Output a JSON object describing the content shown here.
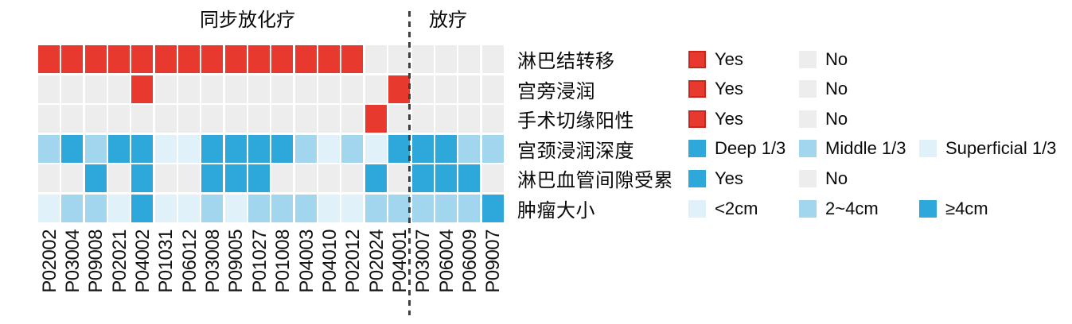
{
  "colors": {
    "red": "#E8392E",
    "red_border": "#C9271D",
    "gray": "#EDEDED",
    "blue_dark": "#2EA7DB",
    "blue_mid": "#A2D6EE",
    "blue_light": "#E1F1F9",
    "divider": "#3F3F3F"
  },
  "chart_data": {
    "type": "heatmap",
    "groups": [
      {
        "label": "同步放化疗",
        "patient_span": [
          1,
          16
        ]
      },
      {
        "label": "放疗",
        "patient_span": [
          17,
          20
        ]
      }
    ],
    "patients": [
      "P02002",
      "P03004",
      "P09008",
      "P02021",
      "P04002",
      "P01031",
      "P06012",
      "P03008",
      "P09005",
      "P01027",
      "P01008",
      "P04003",
      "P04010",
      "P02012",
      "P02024",
      "P04001",
      "P03007",
      "P06004",
      "P06009",
      "P09007"
    ],
    "rows": [
      {
        "label": "淋巴结转移",
        "palette": {
          "Yes": "red",
          "No": "gray"
        },
        "legend": [
          {
            "label": "Yes",
            "color": "red",
            "bordered": true
          },
          {
            "label": "No",
            "color": "gray"
          }
        ],
        "values": [
          "Yes",
          "Yes",
          "Yes",
          "Yes",
          "Yes",
          "Yes",
          "Yes",
          "Yes",
          "Yes",
          "Yes",
          "Yes",
          "Yes",
          "Yes",
          "Yes",
          "No",
          "No",
          "No",
          "No",
          "No",
          "No"
        ]
      },
      {
        "label": "宫旁浸润",
        "palette": {
          "Yes": "red",
          "No": "gray"
        },
        "legend": [
          {
            "label": "Yes",
            "color": "red",
            "bordered": true
          },
          {
            "label": "No",
            "color": "gray"
          }
        ],
        "values": [
          "No",
          "No",
          "No",
          "No",
          "Yes",
          "No",
          "No",
          "No",
          "No",
          "No",
          "No",
          "No",
          "No",
          "No",
          "No",
          "Yes",
          "No",
          "No",
          "No",
          "No"
        ]
      },
      {
        "label": "手术切缘阳性",
        "palette": {
          "Yes": "red",
          "No": "gray"
        },
        "legend": [
          {
            "label": "Yes",
            "color": "red",
            "bordered": true
          },
          {
            "label": "No",
            "color": "gray"
          }
        ],
        "values": [
          "No",
          "No",
          "No",
          "No",
          "No",
          "No",
          "No",
          "No",
          "No",
          "No",
          "No",
          "No",
          "No",
          "No",
          "Yes",
          "No",
          "No",
          "No",
          "No",
          "No"
        ]
      },
      {
        "label": "宫颈浸润深度",
        "palette": {
          "Deep 1/3": "blue_dark",
          "Middle 1/3": "blue_mid",
          "Superficial 1/3": "blue_light"
        },
        "legend": [
          {
            "label": "Deep 1/3",
            "color": "blue_dark"
          },
          {
            "label": "Middle 1/3",
            "color": "blue_mid"
          },
          {
            "label": "Superficial 1/3",
            "color": "blue_light"
          }
        ],
        "values": [
          "Middle 1/3",
          "Deep 1/3",
          "Middle 1/3",
          "Deep 1/3",
          "Deep 1/3",
          "Superficial 1/3",
          "Superficial 1/3",
          "Deep 1/3",
          "Deep 1/3",
          "Deep 1/3",
          "Deep 1/3",
          "Middle 1/3",
          "Superficial 1/3",
          "Middle 1/3",
          "Superficial 1/3",
          "Deep 1/3",
          "Deep 1/3",
          "Deep 1/3",
          "Middle 1/3",
          "Middle 1/3"
        ]
      },
      {
        "label": "淋巴血管间隙受累",
        "palette": {
          "Yes": "blue_dark",
          "No": "gray"
        },
        "legend": [
          {
            "label": "Yes",
            "color": "blue_dark"
          },
          {
            "label": "No",
            "color": "gray"
          }
        ],
        "values": [
          "No",
          "No",
          "Yes",
          "No",
          "Yes",
          "No",
          "No",
          "Yes",
          "Yes",
          "Yes",
          "No",
          "No",
          "No",
          "No",
          "Yes",
          "No",
          "Yes",
          "Yes",
          "Yes",
          "No"
        ]
      },
      {
        "label": "肿瘤大小",
        "palette": {
          "<2cm": "blue_light",
          "2~4cm": "blue_mid",
          "≥4cm": "blue_dark"
        },
        "legend": [
          {
            "label": "<2cm",
            "color": "blue_light"
          },
          {
            "label": "2~4cm",
            "color": "blue_mid"
          },
          {
            "label": "≥4cm",
            "color": "blue_dark"
          }
        ],
        "values": [
          "<2cm",
          "2~4cm",
          "2~4cm",
          "<2cm",
          "≥4cm",
          "<2cm",
          "<2cm",
          "2~4cm",
          "<2cm",
          "2~4cm",
          "2~4cm",
          "2~4cm",
          "<2cm",
          "<2cm",
          "2~4cm",
          "2~4cm",
          "2~4cm",
          "2~4cm",
          "2~4cm",
          "≥4cm"
        ]
      }
    ],
    "layout": {
      "legend_position": "right",
      "grid": "off",
      "divider_between_columns": [
        16,
        17
      ]
    }
  }
}
